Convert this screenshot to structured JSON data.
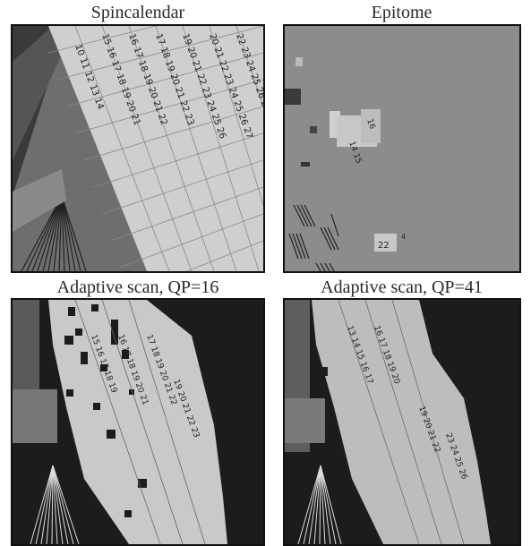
{
  "figure": {
    "panels": [
      {
        "id": "spincalendar",
        "title": "Spincalendar"
      },
      {
        "id": "epitome",
        "title": "Epitome"
      },
      {
        "id": "adaptive16",
        "title": "Adaptive scan, QP=16"
      },
      {
        "id": "adaptive41",
        "title": "Adaptive scan, QP=41"
      }
    ]
  }
}
